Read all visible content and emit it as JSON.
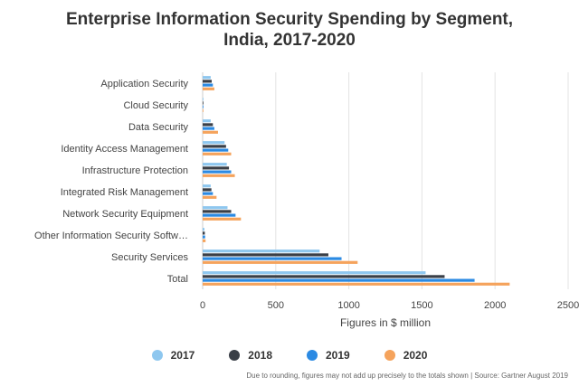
{
  "chart_data": {
    "type": "bar",
    "orientation": "horizontal",
    "title_lines": [
      "Enterprise Information Security Spending by Segment,",
      "India, 2017-2020"
    ],
    "categories": [
      "Application Security",
      "Cloud Security",
      "Data Security",
      "Identity Access Management",
      "Infrastructure Protection",
      "Integrated Risk Management",
      "Network Security Equipment",
      "Other Information Security Software",
      "Security Services",
      "Total"
    ],
    "category_display": [
      "Application Security",
      "Cloud Security",
      "Data Security",
      "Identity Access Management",
      "Infrastructure Protection",
      "Integrated Risk Management",
      "Network Security Equipment",
      "Other Information Security Softw…",
      "Security Services",
      "Total"
    ],
    "series": [
      {
        "name": "2017",
        "color": "#8ec7ef",
        "values": [
          55,
          2,
          55,
          150,
          165,
          55,
          170,
          12,
          800,
          1525
        ]
      },
      {
        "name": "2018",
        "color": "#3a3f47",
        "values": [
          62,
          2,
          70,
          160,
          180,
          60,
          195,
          15,
          860,
          1655
        ]
      },
      {
        "name": "2019",
        "color": "#2b8ae3",
        "values": [
          70,
          3,
          80,
          175,
          195,
          70,
          225,
          17,
          950,
          1860
        ]
      },
      {
        "name": "2020",
        "color": "#f5a35c",
        "values": [
          80,
          4,
          105,
          195,
          220,
          95,
          262,
          20,
          1060,
          2100
        ]
      }
    ],
    "xlabel": "Figures in $ million",
    "xlim": [
      0,
      2500
    ],
    "xticks": [
      0,
      500,
      1000,
      1500,
      2000,
      2500
    ],
    "grid": true,
    "legend_position": "bottom"
  },
  "footnote": "Due to rounding, figures may not add up precisely to the totals shown | Source: Gartner August 2019"
}
